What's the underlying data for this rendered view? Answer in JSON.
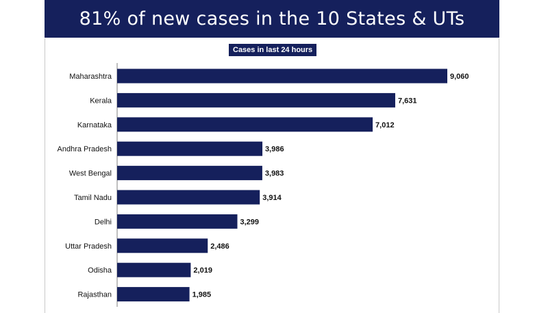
{
  "banner": {
    "title": "81% of new cases in the 10 States & UTs"
  },
  "colors": {
    "navy": "#15205c",
    "axis": "#7f7f7f",
    "text": "#111111"
  },
  "chart_data": {
    "type": "bar",
    "orientation": "horizontal",
    "title": "Cases in last 24 hours",
    "categories": [
      "Maharashtra",
      "Kerala",
      "Karnataka",
      "Andhra Pradesh",
      "West Bengal",
      "Tamil Nadu",
      "Delhi",
      "Uttar Pradesh",
      "Odisha",
      "Rajasthan"
    ],
    "values": [
      9060,
      7631,
      7012,
      3986,
      3983,
      3914,
      3299,
      2486,
      2019,
      1985
    ],
    "value_labels": [
      "9,060",
      "7,631",
      "7,012",
      "3,986",
      "3,983",
      "3,914",
      "3,299",
      "2,486",
      "2,019",
      "1,985"
    ],
    "xlim": [
      0,
      9060
    ],
    "grid": false,
    "legend": "none"
  }
}
